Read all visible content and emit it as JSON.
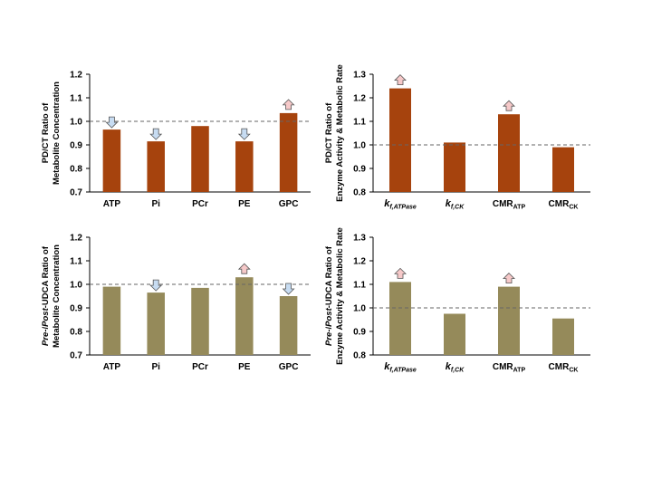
{
  "colors": {
    "orange": "#a6430d",
    "olive": "#958a5a",
    "up_arrow": "#f6c9c9",
    "down_arrow": "#c7dcf2",
    "ref_line": "#666666"
  },
  "chart_data": [
    {
      "type": "bar",
      "id": "pdct-metabolite",
      "ylabel_line1": "PD/CT Ratio of",
      "ylabel_line2": "Metabolite Concentration",
      "categories": [
        {
          "base": "ATP"
        },
        {
          "base": "Pi"
        },
        {
          "base": "PCr"
        },
        {
          "base": "PE"
        },
        {
          "base": "GPC"
        }
      ],
      "values": [
        0.965,
        0.915,
        0.98,
        0.915,
        1.035
      ],
      "arrows": [
        "down",
        "down",
        null,
        "down",
        "up"
      ],
      "ylim": [
        0.7,
        1.2
      ],
      "yticks": [
        "0.7",
        "0.8",
        "0.9",
        "1.0",
        "1.1",
        "1.2"
      ],
      "reference": 1.0,
      "color": "orange"
    },
    {
      "type": "bar",
      "id": "pdct-enzyme",
      "ylabel_line1": "PD/CT Ratio of",
      "ylabel_line2": "Enzyme Activity & Metabolic Rate",
      "categories": [
        {
          "base": "k",
          "sub": "f,ATPase"
        },
        {
          "base": "k",
          "sub": "f,CK"
        },
        {
          "base": "CMR",
          "sub": "ATP"
        },
        {
          "base": "CMR",
          "sub": "CK"
        }
      ],
      "values": [
        1.24,
        1.01,
        1.13,
        0.99
      ],
      "arrows": [
        "up",
        null,
        "up",
        null
      ],
      "ylim": [
        0.8,
        1.3
      ],
      "yticks": [
        "0.8",
        "0.9",
        "1.0",
        "1.1",
        "1.2",
        "1.3"
      ],
      "reference": 1.0,
      "color": "orange"
    },
    {
      "type": "bar",
      "id": "udca-metabolite",
      "ylabel_line1_italic_a": "Pre-",
      "ylabel_line1_slash": "/",
      "ylabel_line1_italic_b": "Post-",
      "ylabel_line1_rest": "UDCA Ratio of",
      "ylabel_line2": "Metabolite Concentration",
      "categories": [
        {
          "base": "ATP"
        },
        {
          "base": "Pi"
        },
        {
          "base": "PCr"
        },
        {
          "base": "PE"
        },
        {
          "base": "GPC"
        }
      ],
      "values": [
        0.99,
        0.965,
        0.985,
        1.03,
        0.95
      ],
      "arrows": [
        null,
        "down",
        null,
        "up",
        "down"
      ],
      "ylim": [
        0.7,
        1.2
      ],
      "yticks": [
        "0.7",
        "0.8",
        "0.9",
        "1.0",
        "1.1",
        "1.2"
      ],
      "reference": 1.0,
      "color": "olive"
    },
    {
      "type": "bar",
      "id": "udca-enzyme",
      "ylabel_line1_italic_a": "Pre-",
      "ylabel_line1_slash": "/",
      "ylabel_line1_italic_b": "Post-",
      "ylabel_line1_rest": "UDCA Ratio of",
      "ylabel_line2": "Enzyme Activity & Metabolic Rate",
      "categories": [
        {
          "base": "k",
          "sub": "f,ATPase"
        },
        {
          "base": "k",
          "sub": "f,CK"
        },
        {
          "base": "CMR",
          "sub": "ATP"
        },
        {
          "base": "CMR",
          "sub": "CK"
        }
      ],
      "values": [
        1.11,
        0.975,
        1.09,
        0.955
      ],
      "arrows": [
        "up",
        null,
        "up",
        null
      ],
      "ylim": [
        0.8,
        1.3
      ],
      "yticks": [
        "0.8",
        "0.9",
        "1.0",
        "1.1",
        "1.2",
        "1.3"
      ],
      "reference": 1.0,
      "color": "olive"
    }
  ]
}
